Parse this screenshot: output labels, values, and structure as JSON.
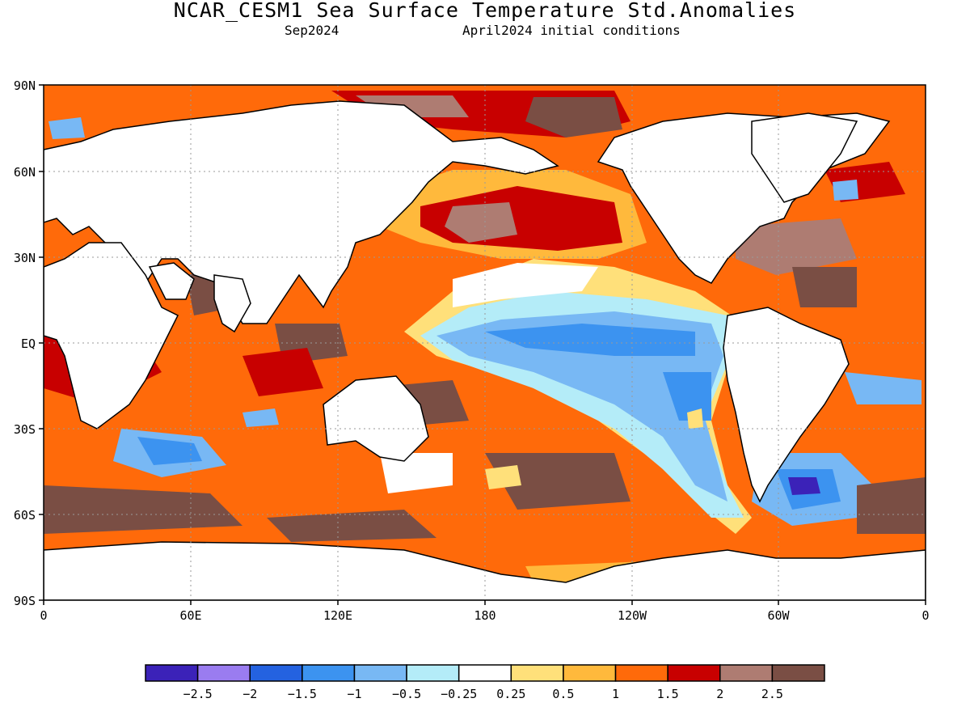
{
  "header": {
    "title": "NCAR_CESM1 Sea Surface Temperature Std.Anomalies",
    "valid_month": "Sep2024",
    "init_label": "April2024 initial conditions"
  },
  "map": {
    "projection": "equirectangular",
    "lat_ticks": [
      "90N",
      "60N",
      "30N",
      "EQ",
      "30S",
      "60S",
      "90S"
    ],
    "lon_ticks": [
      "0",
      "60E",
      "120E",
      "180",
      "120W",
      "60W",
      "0"
    ],
    "grid": true,
    "colors": {
      "land": "#ffffff",
      "coast": "#000000",
      "grid": "#9a9a9a"
    }
  },
  "colorbar": {
    "colors": [
      "#3b22b8",
      "#9a7cf0",
      "#2462e0",
      "#3c93f0",
      "#78b8f4",
      "#b4ecf8",
      "#ffffff",
      "#ffe07a",
      "#ffb93c",
      "#ff6a0a",
      "#c80000",
      "#ae7c72",
      "#7a4e44"
    ],
    "labels": [
      "−2.5",
      "−2",
      "−1.5",
      "−1",
      "−0.5",
      "−0.25",
      "0.25",
      "0.5",
      "1",
      "1.5",
      "2",
      "2.5"
    ]
  }
}
